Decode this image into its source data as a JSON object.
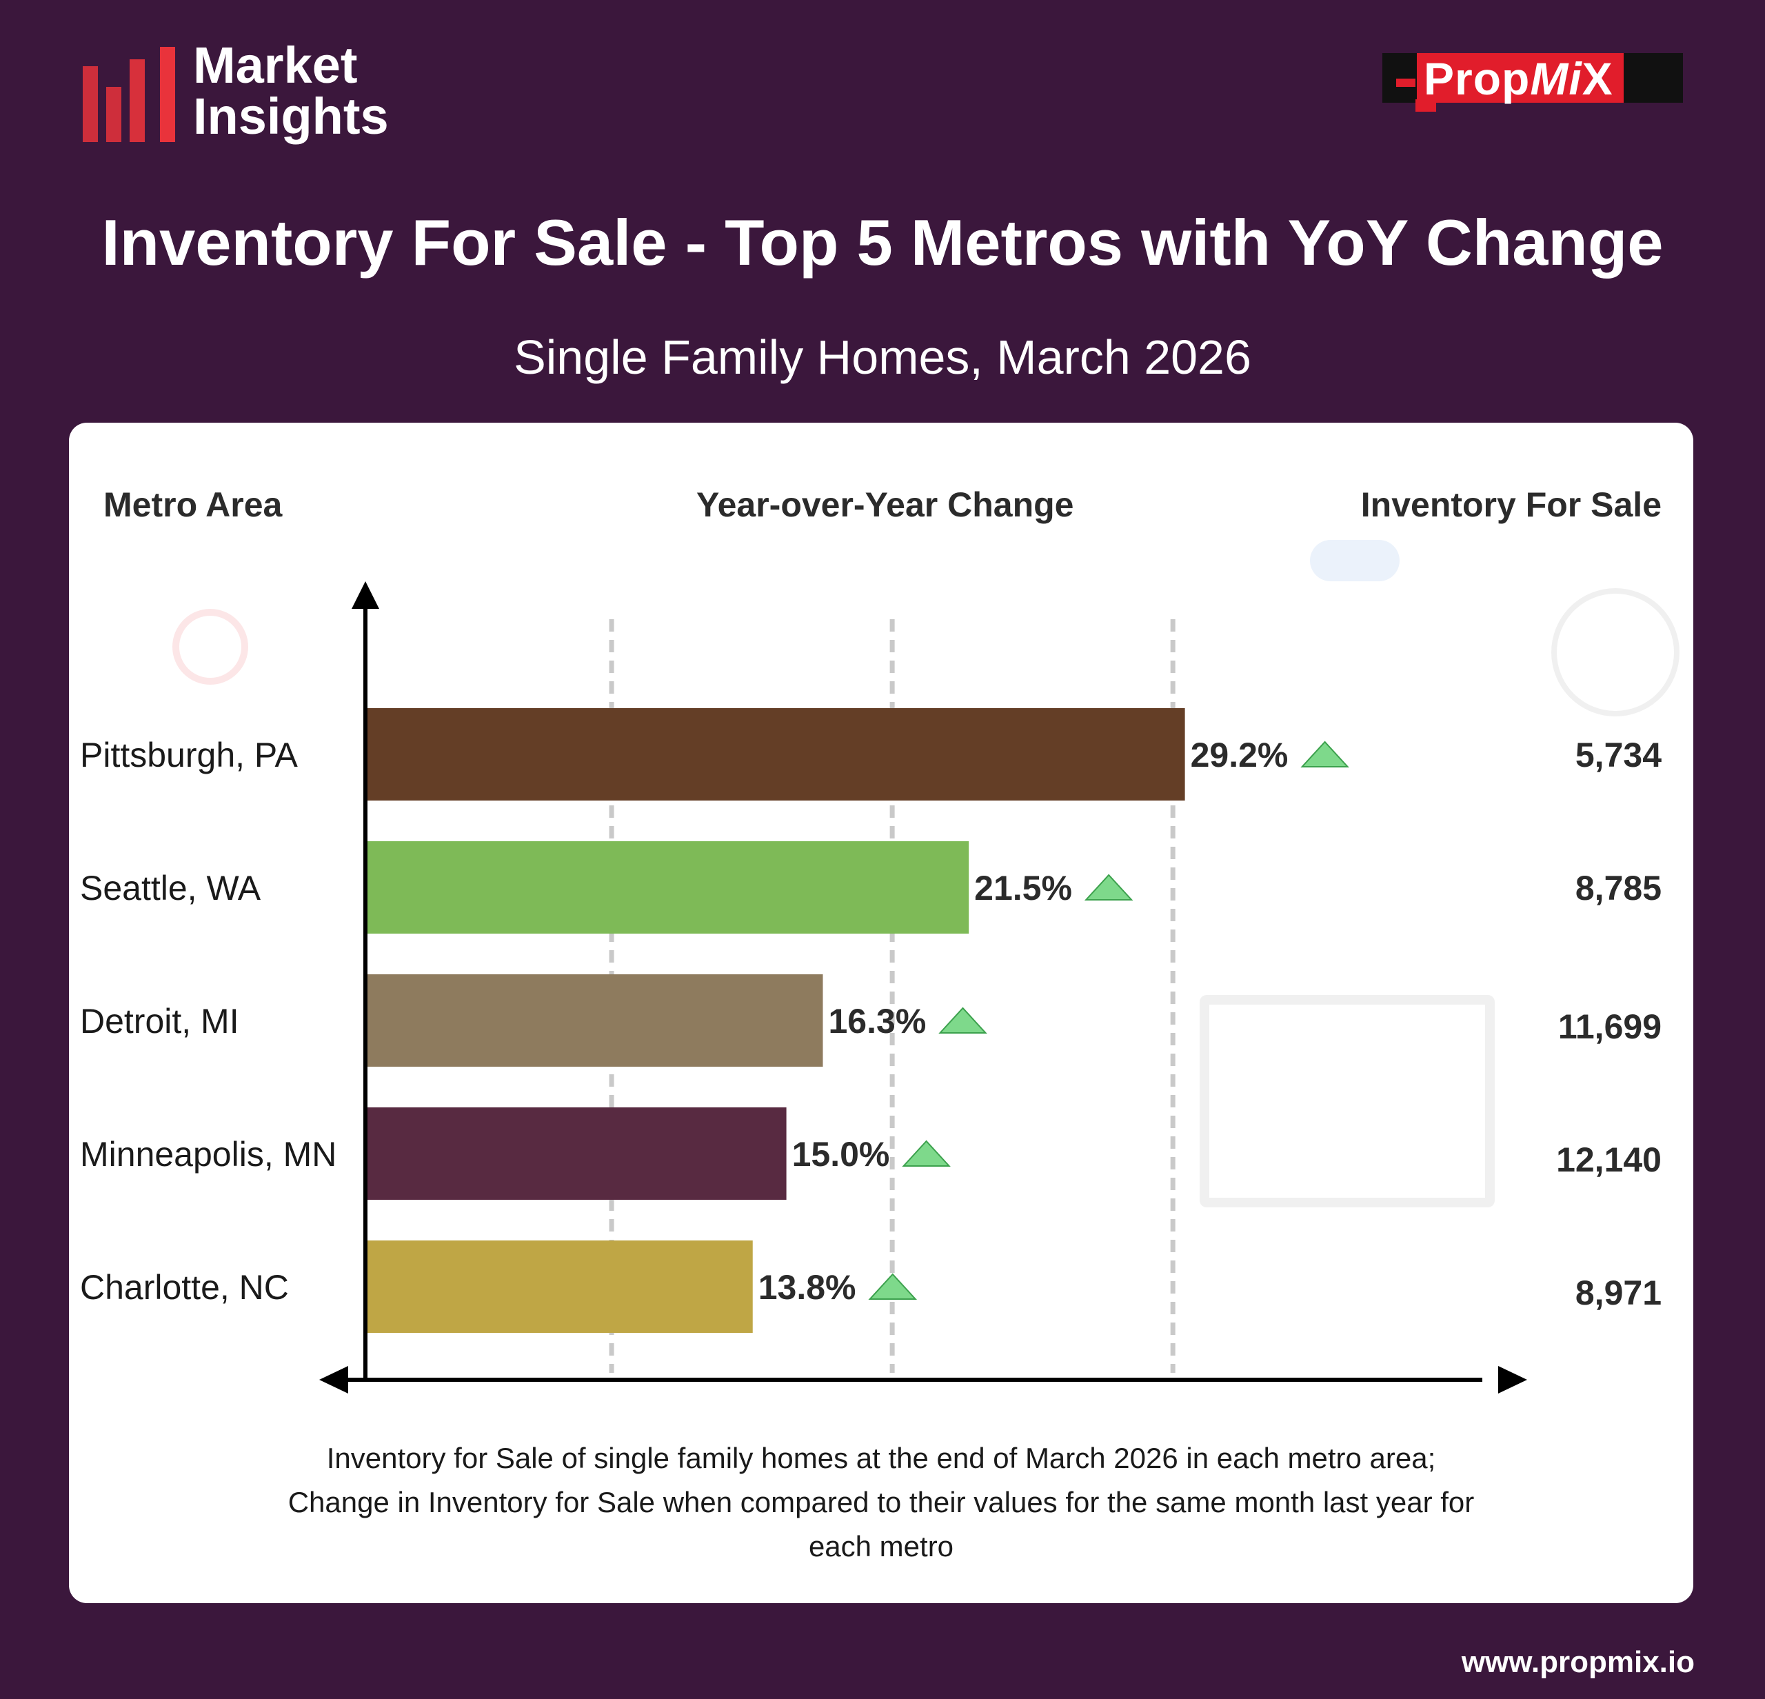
{
  "brand": {
    "logo_line1": "Market",
    "logo_line2": "Insights",
    "partner_logo_main": "Prop",
    "partner_logo_mi": "Mi",
    "partner_logo_x": "X",
    "website": "www.propmix.io"
  },
  "header": {
    "title": "Inventory For Sale - Top 5 Metros with YoY Change",
    "subtitle": "Single Family Homes, March 2026"
  },
  "columns": {
    "metro": "Metro Area",
    "yoy": "Year-over-Year Change",
    "inventory": "Inventory For Sale"
  },
  "footnote": {
    "line1": "Inventory for Sale of single family homes at the end of March 2026 in each metro area;",
    "line2": "Change in Inventory for Sale when compared to their values for the same month last year for",
    "line3": "each metro"
  },
  "colors": {
    "background": "#3b173c",
    "up_arrow": "#7ed98b"
  },
  "chart_data": {
    "type": "bar",
    "orientation": "horizontal",
    "categories": [
      "Pittsburgh, PA",
      "Seattle, WA",
      "Detroit, MI",
      "Minneapolis, MN",
      "Charlotte, NC"
    ],
    "values": [
      29.2,
      21.5,
      16.3,
      15.0,
      13.8
    ],
    "value_labels": [
      "29.2%",
      "21.5%",
      "16.3%",
      "15.0%",
      "13.8%"
    ],
    "bar_colors": [
      "#643e26",
      "#7eba57",
      "#8e7b5e",
      "#582a41",
      "#bfa645"
    ],
    "inventory": [
      "5,734",
      "8,785",
      "11,699",
      "12,140",
      "8,971"
    ],
    "xlim": [
      0,
      34
    ],
    "direction": [
      "up",
      "up",
      "up",
      "up",
      "up"
    ]
  }
}
